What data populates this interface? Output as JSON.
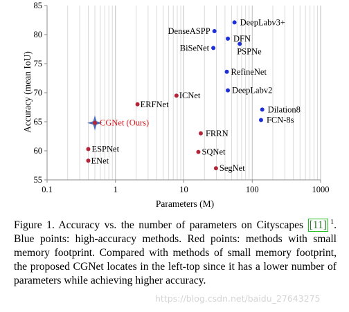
{
  "chart_data": {
    "type": "scatter",
    "xscale": "log",
    "xlim": [
      0.1,
      1000
    ],
    "ylim": [
      55,
      85
    ],
    "xticks": [
      0.1,
      1,
      10,
      100,
      1000
    ],
    "yticks": [
      55,
      60,
      65,
      70,
      75,
      80,
      85
    ],
    "xtick_labels": [
      "0.1",
      "1",
      "10",
      "100",
      "1000"
    ],
    "ytick_labels": [
      "55",
      "60",
      "65",
      "70",
      "75",
      "80",
      "85"
    ],
    "xlabel": "Parameters (M)",
    "ylabel": "Accuracy (mean IoU)",
    "grid": "vertical log grid",
    "colors": {
      "high_accuracy": "#1f2fd6",
      "low_memory": "#b3263a",
      "highlight_label": "#e0191e",
      "star": "#4a6fb5"
    },
    "series": [
      {
        "group": "high_accuracy",
        "points": [
          {
            "label": "DeepLabv3+",
            "x": 55,
            "y": 82.1
          },
          {
            "label": "DenseASPP",
            "x": 28,
            "y": 80.6
          },
          {
            "label": "DFN",
            "x": 44,
            "y": 79.3
          },
          {
            "label": "PSPNe",
            "x": 65.7,
            "y": 78.4
          },
          {
            "label": "BiSeNet",
            "x": 27,
            "y": 77.7
          },
          {
            "label": "RefineNet",
            "x": 42.5,
            "y": 73.6
          },
          {
            "label": "DeepLabv2",
            "x": 44,
            "y": 70.4
          },
          {
            "label": "Dilation8",
            "x": 140,
            "y": 67.1
          },
          {
            "label": "FCN-8s",
            "x": 134.5,
            "y": 65.3
          }
        ]
      },
      {
        "group": "low_memory",
        "points": [
          {
            "label": "ICNet",
            "x": 7.8,
            "y": 69.5
          },
          {
            "label": "ERFNet",
            "x": 2.1,
            "y": 68.0
          },
          {
            "label": "CGNet (Ours)",
            "x": 0.5,
            "y": 64.8
          },
          {
            "label": "FRRN",
            "x": 17.7,
            "y": 63.0
          },
          {
            "label": "ESPNet",
            "x": 0.4,
            "y": 60.3
          },
          {
            "label": "SQNet",
            "x": 16.3,
            "y": 59.8
          },
          {
            "label": "ENet",
            "x": 0.4,
            "y": 58.3
          },
          {
            "label": "SegNet",
            "x": 29.5,
            "y": 57.0
          }
        ]
      }
    ]
  },
  "caption": {
    "lead": "Figure 1. Accuracy vs.  the number of parameters on Cityscapes ",
    "cite": "[11]",
    "sup": "1",
    "text": ". Blue points: high-accuracy methods. Red points: methods with small memory footprint.  Compared with methods of small memory footprint, the proposed CGNet locates in the left-top since it has a lower number of parameters while achieving higher accuracy."
  },
  "watermark": "https://blog.csdn.net/baidu_27643275"
}
